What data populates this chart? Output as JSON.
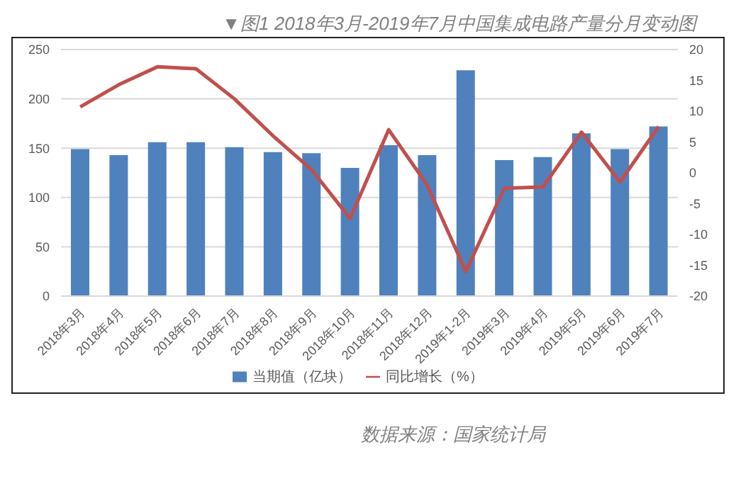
{
  "chart_data": {
    "type": "bar",
    "title": "▼图1  2018年3月-2019年7月中国集成电路产量分月变动图",
    "categories": [
      "2018年3月",
      "2018年4月",
      "2018年5月",
      "2018年6月",
      "2018年7月",
      "2018年8月",
      "2018年9月",
      "2018年10月",
      "2018年11月",
      "2018年12月",
      "2019年1-2月",
      "2019年3月",
      "2019年4月",
      "2019年5月",
      "2019年6月",
      "2019年7月"
    ],
    "series": [
      {
        "name": "当期值（亿块）",
        "color": "#4f81bd",
        "values": [
          149,
          143,
          156,
          156,
          151,
          146,
          145,
          130,
          153,
          143,
          229,
          138,
          141,
          165,
          149,
          172
        ]
      },
      {
        "name": "同比增长（%）",
        "type": "line",
        "axis": "y2",
        "color": "#c0504d",
        "values": [
          10.7,
          14.3,
          17.2,
          16.9,
          12,
          6,
          0.5,
          -7.4,
          7,
          -2,
          -16,
          -2.5,
          -2.3,
          6.6,
          -1.5,
          7.5
        ]
      }
    ],
    "ylim": [
      0,
      250
    ],
    "yticks": [
      0,
      50,
      100,
      150,
      200,
      250
    ],
    "y2lim": [
      -20,
      20
    ],
    "y2ticks": [
      -20,
      -15,
      -10,
      -5,
      0,
      5,
      10,
      15,
      20
    ],
    "grid": "y",
    "legend": "bottom",
    "marker": "none",
    "annotations": [
      "数据来源：国家统计局"
    ]
  }
}
